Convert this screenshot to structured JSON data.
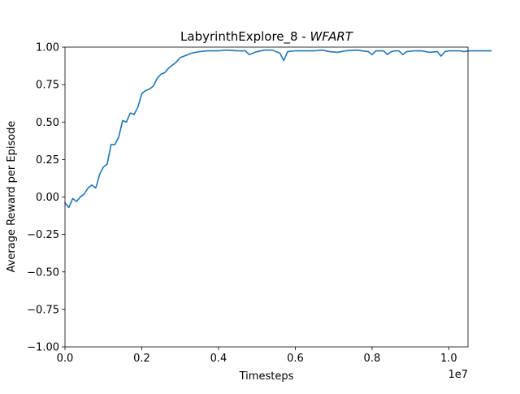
{
  "chart_data": {
    "type": "line",
    "title": "LabyrinthExplore_8 - ",
    "title_emphasis": "WFART",
    "xlabel": "Timesteps",
    "ylabel": "Average Reward per Episode",
    "x_offset_label": "1e7",
    "x_tick_scale": 10000000,
    "xlim": [
      0,
      10500000
    ],
    "ylim": [
      -1.0,
      1.0
    ],
    "x_ticks": [
      0,
      2000000,
      4000000,
      6000000,
      8000000,
      10000000
    ],
    "x_tick_labels": [
      "0.0",
      "0.2",
      "0.4",
      "0.6",
      "0.8",
      "1.0"
    ],
    "y_ticks": [
      -1.0,
      -0.75,
      -0.5,
      -0.25,
      0.0,
      0.25,
      0.5,
      0.75,
      1.0
    ],
    "y_tick_labels": [
      "−1.00",
      "−0.75",
      "−0.50",
      "−0.25",
      "0.00",
      "0.25",
      "0.50",
      "0.75",
      "1.00"
    ],
    "grid": false,
    "line_color": "#1f77b4",
    "series": [
      {
        "values": [
          [
            0,
            -0.04
          ],
          [
            100000,
            -0.07
          ],
          [
            200000,
            -0.01
          ],
          [
            300000,
            -0.03
          ],
          [
            400000,
            0.0
          ],
          [
            500000,
            0.02
          ],
          [
            600000,
            0.06
          ],
          [
            700000,
            0.08
          ],
          [
            800000,
            0.06
          ],
          [
            850000,
            0.1
          ],
          [
            900000,
            0.15
          ],
          [
            1000000,
            0.2
          ],
          [
            1100000,
            0.22
          ],
          [
            1200000,
            0.35
          ],
          [
            1300000,
            0.35
          ],
          [
            1400000,
            0.4
          ],
          [
            1500000,
            0.51
          ],
          [
            1600000,
            0.5
          ],
          [
            1700000,
            0.56
          ],
          [
            1800000,
            0.55
          ],
          [
            1900000,
            0.6
          ],
          [
            2000000,
            0.69
          ],
          [
            2100000,
            0.71
          ],
          [
            2200000,
            0.72
          ],
          [
            2300000,
            0.74
          ],
          [
            2400000,
            0.79
          ],
          [
            2500000,
            0.82
          ],
          [
            2600000,
            0.83
          ],
          [
            2700000,
            0.86
          ],
          [
            2800000,
            0.88
          ],
          [
            2900000,
            0.9
          ],
          [
            3000000,
            0.93
          ],
          [
            3100000,
            0.94
          ],
          [
            3200000,
            0.95
          ],
          [
            3300000,
            0.96
          ],
          [
            3500000,
            0.97
          ],
          [
            3700000,
            0.975
          ],
          [
            4000000,
            0.975
          ],
          [
            4200000,
            0.98
          ],
          [
            4500000,
            0.975
          ],
          [
            4700000,
            0.975
          ],
          [
            4800000,
            0.95
          ],
          [
            5000000,
            0.97
          ],
          [
            5200000,
            0.98
          ],
          [
            5400000,
            0.98
          ],
          [
            5600000,
            0.96
          ],
          [
            5700000,
            0.91
          ],
          [
            5800000,
            0.97
          ],
          [
            6000000,
            0.975
          ],
          [
            6500000,
            0.975
          ],
          [
            6700000,
            0.98
          ],
          [
            6900000,
            0.97
          ],
          [
            7100000,
            0.965
          ],
          [
            7300000,
            0.975
          ],
          [
            7600000,
            0.98
          ],
          [
            7900000,
            0.97
          ],
          [
            8000000,
            0.95
          ],
          [
            8100000,
            0.975
          ],
          [
            8300000,
            0.975
          ],
          [
            8400000,
            0.95
          ],
          [
            8500000,
            0.97
          ],
          [
            8600000,
            0.975
          ],
          [
            8700000,
            0.975
          ],
          [
            8800000,
            0.95
          ],
          [
            8900000,
            0.97
          ],
          [
            9100000,
            0.975
          ],
          [
            9300000,
            0.975
          ],
          [
            9500000,
            0.965
          ],
          [
            9700000,
            0.97
          ],
          [
            9800000,
            0.94
          ],
          [
            9900000,
            0.97
          ],
          [
            10000000,
            0.975
          ],
          [
            10100000,
            0.975
          ],
          [
            10300000,
            0.975
          ],
          [
            10400000,
            0.97
          ],
          [
            10500000,
            0.975
          ],
          [
            10700000,
            0.975
          ],
          [
            10900000,
            0.975
          ],
          [
            11000000,
            0.975
          ],
          [
            11100000,
            0.975
          ]
        ]
      }
    ]
  }
}
